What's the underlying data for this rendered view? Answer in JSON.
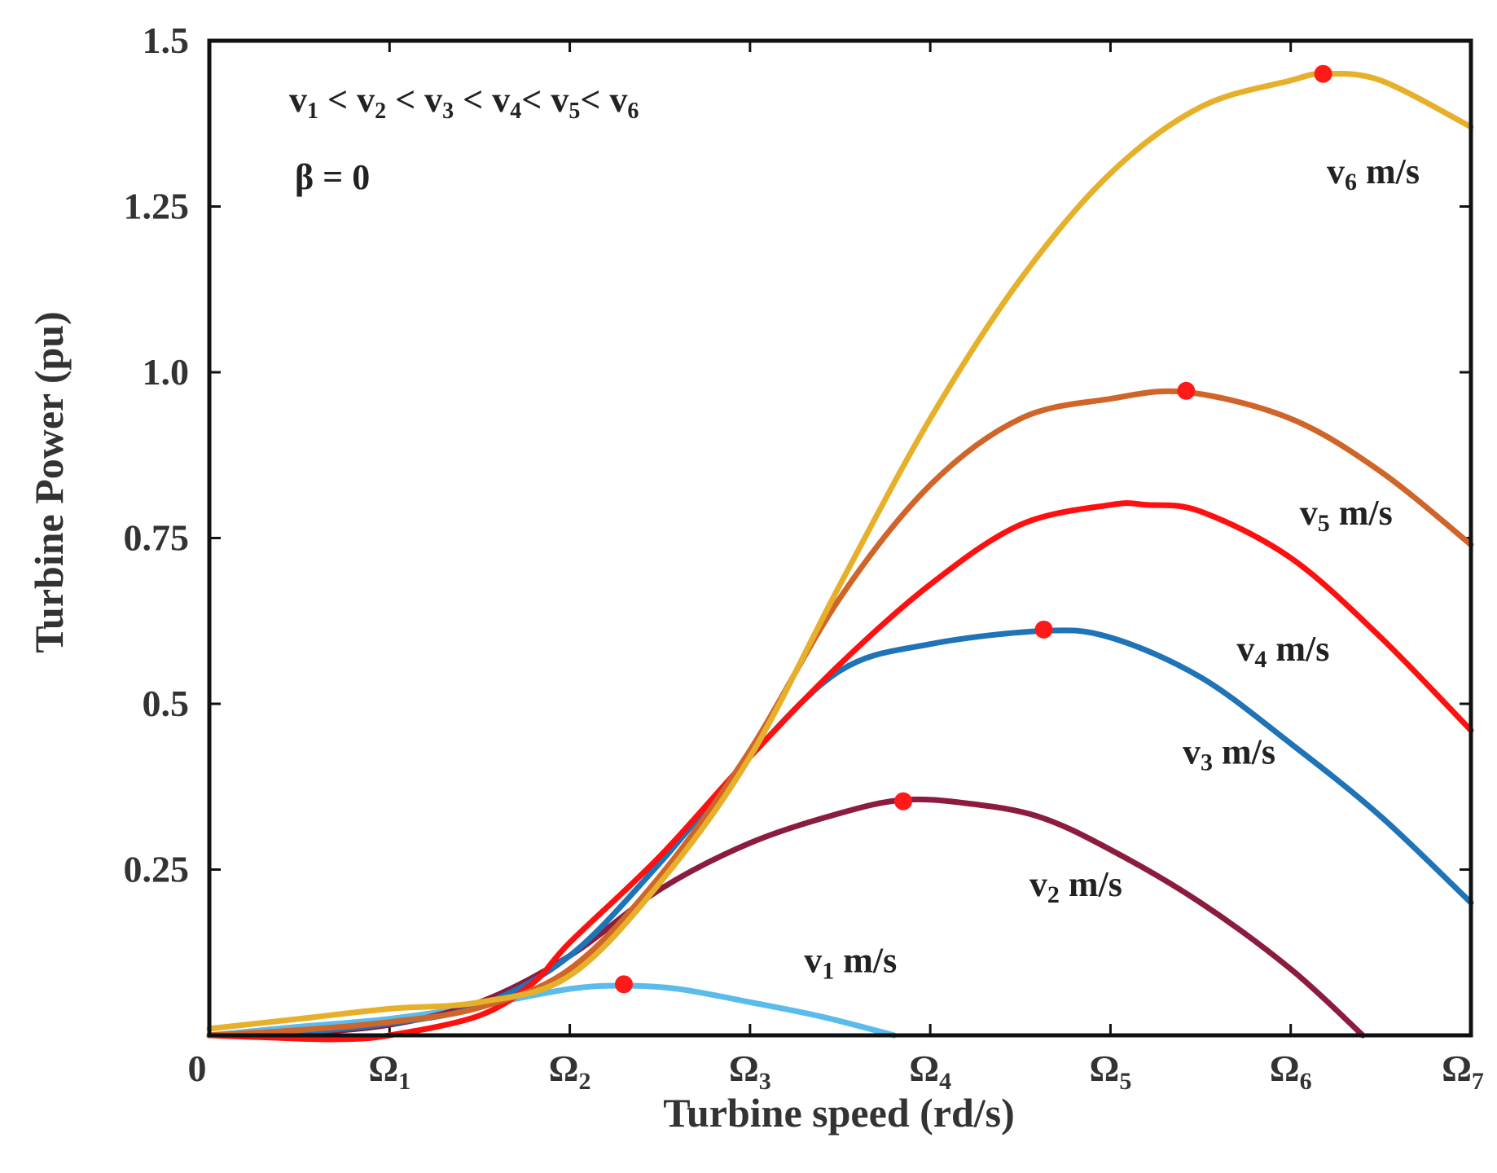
{
  "chart_data": {
    "type": "line",
    "xlabel": "Turbine speed (rd/s)",
    "ylabel": "Turbine Power (pu)",
    "xlim": [
      0,
      7
    ],
    "ylim": [
      0,
      1.5
    ],
    "x_tick_labels": [
      {
        "value": 0,
        "base": "0",
        "sub": ""
      },
      {
        "value": 1,
        "base": "Ω",
        "sub": "1"
      },
      {
        "value": 2,
        "base": "Ω",
        "sub": "2"
      },
      {
        "value": 3,
        "base": "Ω",
        "sub": "3"
      },
      {
        "value": 4,
        "base": "Ω",
        "sub": "4"
      },
      {
        "value": 5,
        "base": "Ω",
        "sub": "5"
      },
      {
        "value": 6,
        "base": "Ω",
        "sub": "6"
      },
      {
        "value": 7,
        "base": "Ω",
        "sub": "7"
      }
    ],
    "y_ticks": [
      0.25,
      0.5,
      0.75,
      1.0,
      1.25,
      1.5
    ],
    "y_tick_labels": [
      "0.25",
      "0.5",
      "0.75",
      "1.0",
      "1.25",
      "1.5"
    ],
    "annotations": {
      "inequality": [
        "v",
        "1",
        " < ",
        "v",
        "2",
        " < ",
        "v",
        "3",
        " < ",
        "v",
        "4",
        "< ",
        "v",
        "5",
        "< ",
        "v",
        "6"
      ],
      "beta": "β = 0"
    },
    "series": [
      {
        "name": "v1",
        "label_base": "v",
        "label_sub": "1",
        "label_unit": " m/s",
        "color": "#5bbbea",
        "x": [
          0,
          0.5,
          1.0,
          1.5,
          2.0,
          2.3,
          2.6,
          3.0,
          3.4,
          3.8
        ],
        "y": [
          0.0,
          0.013,
          0.025,
          0.045,
          0.07,
          0.075,
          0.07,
          0.05,
          0.028,
          0.0
        ],
        "peak": [
          2.3,
          0.077
        ],
        "label_pos": [
          3.3,
          0.095
        ]
      },
      {
        "name": "v2",
        "label_base": "v",
        "label_sub": "2",
        "label_unit": " m/s",
        "color": "#8b1c3e",
        "x": [
          0,
          0.5,
          1.0,
          1.5,
          2.0,
          2.5,
          3.0,
          3.5,
          3.85,
          4.2,
          4.6,
          5.0,
          5.5,
          6.0,
          6.4
        ],
        "y": [
          0.0,
          0.004,
          0.016,
          0.05,
          0.12,
          0.22,
          0.29,
          0.335,
          0.355,
          0.35,
          0.33,
          0.28,
          0.2,
          0.1,
          0.0
        ],
        "peak": [
          3.85,
          0.353
        ],
        "label_pos": [
          4.55,
          0.21
        ]
      },
      {
        "name": "v3",
        "label_base": "v",
        "label_sub": "3",
        "label_unit": " m/s",
        "color": "#1f73b7",
        "x": [
          0,
          0.5,
          1.0,
          1.5,
          2.0,
          2.5,
          3.0,
          3.5,
          4.0,
          4.63,
          5.0,
          5.5,
          6.0,
          6.5,
          7.0
        ],
        "y": [
          0.0,
          0.005,
          0.018,
          0.045,
          0.12,
          0.26,
          0.42,
          0.55,
          0.59,
          0.61,
          0.6,
          0.54,
          0.44,
          0.33,
          0.2
        ],
        "peak": [
          4.63,
          0.612
        ],
        "label_pos": [
          5.4,
          0.41
        ]
      },
      {
        "name": "v4",
        "label_base": "v",
        "label_sub": "4",
        "label_unit": " m/s",
        "color": "#ff1010",
        "x": [
          0,
          0.3,
          0.7,
          1.0,
          1.5,
          1.8,
          2.0,
          2.5,
          3.0,
          3.5,
          4.0,
          4.5,
          5.0,
          5.2,
          5.5,
          6.0,
          6.5,
          7.0
        ],
        "y": [
          0.0,
          -0.003,
          -0.006,
          0.0,
          0.03,
          0.08,
          0.14,
          0.27,
          0.42,
          0.56,
          0.68,
          0.77,
          0.8,
          0.8,
          0.79,
          0.72,
          0.6,
          0.46
        ],
        "peak": null,
        "label_pos": [
          5.7,
          0.565
        ]
      },
      {
        "name": "v5",
        "label_base": "v",
        "label_sub": "5",
        "label_unit": " m/s",
        "color": "#d0652a",
        "x": [
          0,
          0.5,
          1.0,
          1.5,
          2.0,
          2.5,
          3.0,
          3.5,
          4.0,
          4.5,
          5.0,
          5.42,
          6.0,
          6.5,
          7.0
        ],
        "y": [
          0.0,
          0.008,
          0.02,
          0.042,
          0.1,
          0.24,
          0.43,
          0.66,
          0.83,
          0.93,
          0.96,
          0.97,
          0.93,
          0.85,
          0.74
        ],
        "peak": [
          5.42,
          0.972
        ],
        "label_pos": [
          6.05,
          0.77
        ]
      },
      {
        "name": "v6",
        "label_base": "v",
        "label_sub": "6",
        "label_unit": " m/s",
        "color": "#e6b02a",
        "x": [
          0,
          0.5,
          1.0,
          1.5,
          2.0,
          2.5,
          3.0,
          3.5,
          4.0,
          4.5,
          5.0,
          5.5,
          6.0,
          6.18,
          6.5,
          7.0
        ],
        "y": [
          0.01,
          0.025,
          0.04,
          0.05,
          0.09,
          0.23,
          0.42,
          0.68,
          0.93,
          1.14,
          1.3,
          1.4,
          1.44,
          1.45,
          1.44,
          1.37
        ],
        "peak": [
          6.18,
          1.45
        ],
        "label_pos": [
          6.2,
          1.285
        ]
      }
    ]
  }
}
